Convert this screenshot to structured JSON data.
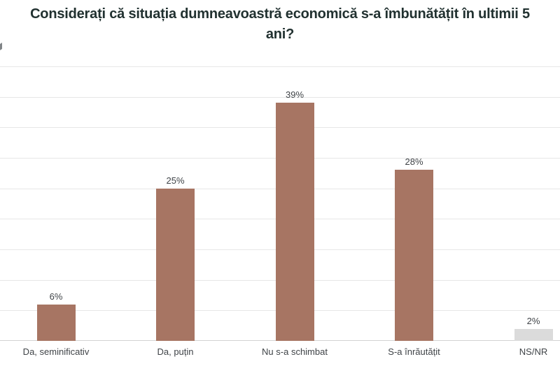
{
  "title": {
    "line1": "Considerați că situația dumneavoastră economică s-a îmbunătățit în ultimii 5",
    "line2": "ani?",
    "full": "Considerați că situația dumneavoastră economică s-a îmbunătățit în ultimii 5 ani?"
  },
  "chart_data": {
    "type": "bar",
    "title": "Considerați că situația dumneavoastră economică s-a îmbunătățit în ultimii 5 ani?",
    "categories": [
      "Da, seminificativ",
      "Da, puțin",
      "Nu s-a schimbat",
      "S-a înrăutățit",
      "NS/NR"
    ],
    "values": [
      6,
      25,
      39,
      28,
      2
    ],
    "value_labels": [
      "6%",
      "25%",
      "39%",
      "28%",
      "2%"
    ],
    "unit": "%",
    "xlabel": "",
    "ylabel": "",
    "ylim": [
      0,
      45
    ],
    "grid": true,
    "gridline_step": 5,
    "legend": false,
    "bar_colors": [
      "#A77563",
      "#A77563",
      "#A77563",
      "#A77563",
      "#DBDBDB"
    ]
  },
  "colors": {
    "bar_primary": "#A77563",
    "bar_muted": "#DBDBDB",
    "title_text": "#213130",
    "label_text": "#3F4347",
    "gridline": "#E7E7E7",
    "axis_line": "#D2D2D2",
    "background": "#FFFFFF"
  }
}
